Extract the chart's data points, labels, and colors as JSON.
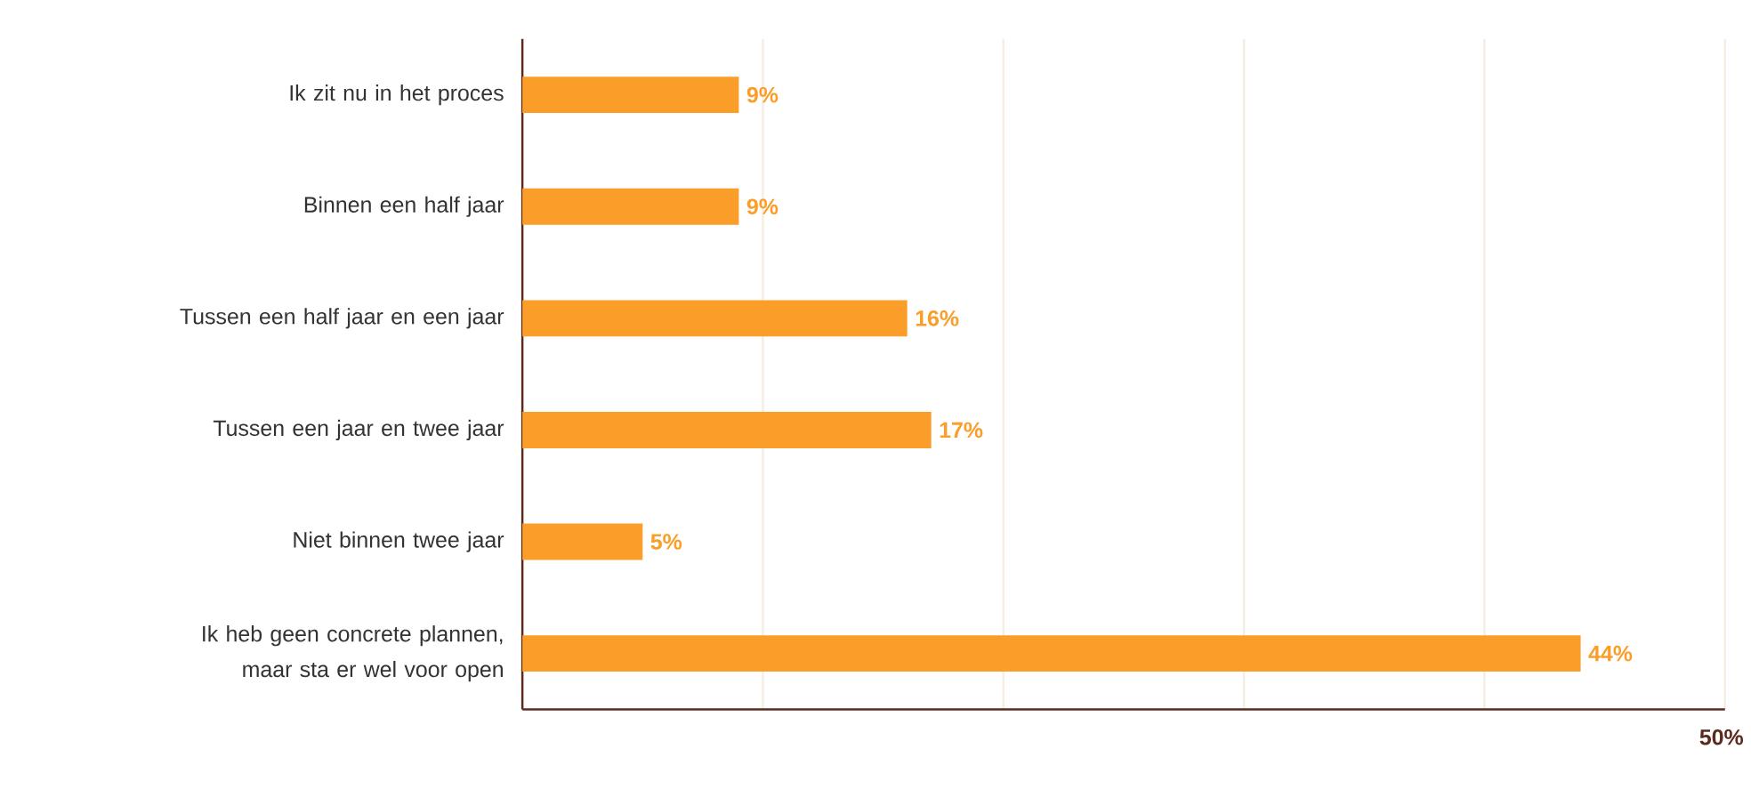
{
  "chart_data": {
    "type": "bar",
    "orientation": "horizontal",
    "categories": [
      "Ik zit nu in het proces",
      "Binnen een half jaar",
      "Tussen een half jaar en een jaar",
      "Tussen een jaar en twee jaar",
      "Niet binnen twee jaar",
      "Ik heb geen concrete plannen, maar sta er wel voor open"
    ],
    "values": [
      9,
      9,
      16,
      17,
      5,
      44
    ],
    "value_labels": [
      "9%",
      "9%",
      "16%",
      "17%",
      "5%",
      "44%"
    ],
    "color": "#fb9d29",
    "xlim": [
      0,
      50
    ],
    "xticks": [
      {
        "value": 10,
        "label": null
      },
      {
        "value": 20,
        "label": null
      },
      {
        "value": 30,
        "label": null
      },
      {
        "value": 40,
        "label": null
      },
      {
        "value": 50,
        "label": "50%"
      }
    ],
    "grid": "x"
  }
}
